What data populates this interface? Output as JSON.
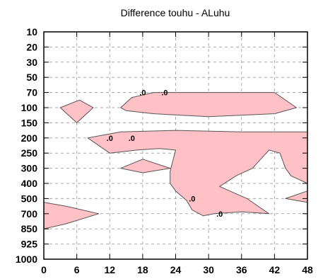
{
  "chart_data": {
    "type": "contour",
    "title": "Difference touhu - ALuhu",
    "xlabel": "",
    "ylabel": "",
    "x_ticks": [
      0,
      6,
      12,
      18,
      24,
      30,
      36,
      42,
      48
    ],
    "x_tick_labels": [
      "0",
      "6",
      "12",
      "18",
      "24",
      "30",
      "36",
      "42",
      "48"
    ],
    "y_levels": [
      10,
      20,
      30,
      50,
      70,
      100,
      150,
      200,
      250,
      300,
      400,
      500,
      700,
      850,
      925,
      1000
    ],
    "y_tick_labels": [
      "10",
      "20",
      "30",
      "50",
      "70",
      "100",
      "150",
      "200",
      "250",
      "300",
      "400",
      "500",
      "700",
      "850",
      "925",
      "1000"
    ],
    "xlim": [
      0,
      48
    ],
    "grid": true,
    "contour_level": 0,
    "fill_color": "#ffc0c6",
    "contour_color": "#555555",
    "contour_labels": [
      {
        "text": ".0",
        "x": 18,
        "y": 70
      },
      {
        "text": ".0",
        "x": 22,
        "y": 70
      },
      {
        "text": ".0",
        "x": 12,
        "y": 200
      },
      {
        "text": ".0",
        "x": 16,
        "y": 200
      },
      {
        "text": ".0",
        "x": 27,
        "y": 500
      },
      {
        "text": ".0",
        "x": 32,
        "y": 700
      }
    ],
    "positive_regions": [
      [
        [
          6.5,
          85
        ],
        [
          9,
          100
        ],
        [
          6,
          150
        ],
        [
          3,
          100
        ]
      ],
      [
        [
          14,
          100
        ],
        [
          16,
          80
        ],
        [
          20,
          70
        ],
        [
          28,
          70
        ],
        [
          40,
          70
        ],
        [
          42,
          70
        ],
        [
          46,
          100
        ],
        [
          42,
          120
        ],
        [
          30,
          130
        ],
        [
          20,
          120
        ],
        [
          15,
          110
        ]
      ],
      [
        [
          8,
          200
        ],
        [
          14,
          180
        ],
        [
          24,
          175
        ],
        [
          36,
          180
        ],
        [
          48,
          180
        ],
        [
          48,
          400
        ],
        [
          45,
          350
        ],
        [
          44,
          300
        ],
        [
          43,
          250
        ],
        [
          41,
          240
        ],
        [
          38,
          300
        ],
        [
          35,
          350
        ],
        [
          32,
          420
        ],
        [
          37,
          500
        ],
        [
          41,
          700
        ],
        [
          36,
          675
        ],
        [
          31,
          700
        ],
        [
          29,
          720
        ],
        [
          27,
          650
        ],
        [
          26,
          525
        ],
        [
          24,
          450
        ],
        [
          23,
          400
        ],
        [
          23,
          320
        ],
        [
          24,
          240
        ],
        [
          21,
          235
        ],
        [
          17,
          240
        ],
        [
          12,
          250
        ]
      ],
      [
        [
          14,
          300
        ],
        [
          18,
          270
        ],
        [
          23,
          300
        ],
        [
          18,
          330
        ]
      ],
      [
        [
          0,
          550
        ],
        [
          4,
          600
        ],
        [
          10,
          700
        ],
        [
          4,
          800
        ],
        [
          0,
          850
        ]
      ],
      [
        [
          44,
          500
        ],
        [
          48,
          450
        ],
        [
          48,
          550
        ]
      ]
    ]
  }
}
